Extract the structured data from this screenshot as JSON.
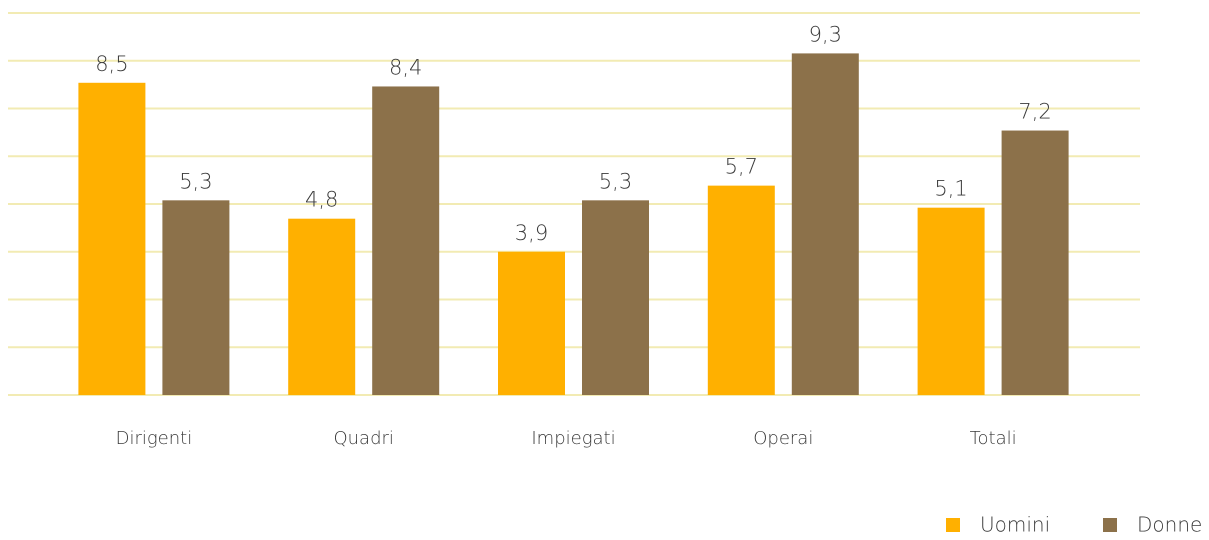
{
  "chart_data": {
    "type": "bar",
    "categories": [
      "Dirigenti",
      "Quadri",
      "Impiegati",
      "Operai",
      "Totali"
    ],
    "series": [
      {
        "name": "Uomini",
        "color": "#ffb000",
        "values": [
          8.5,
          4.8,
          3.9,
          5.7,
          5.1
        ],
        "value_labels": [
          "8,5",
          "4,8",
          "3,9",
          "5,7",
          "5,1"
        ]
      },
      {
        "name": "Donne",
        "color": "#8c714a",
        "values": [
          5.3,
          8.4,
          5.3,
          9.3,
          7.2
        ],
        "value_labels": [
          "5,3",
          "8,4",
          "5,3",
          "9,3",
          "7,2"
        ]
      }
    ],
    "ylim": [
      0,
      10.4
    ],
    "yticks": [
      0,
      1.3,
      2.6,
      3.9,
      5.2,
      6.5,
      7.8,
      9.1,
      10.4
    ],
    "grid": true,
    "legend": "bottom-right"
  }
}
